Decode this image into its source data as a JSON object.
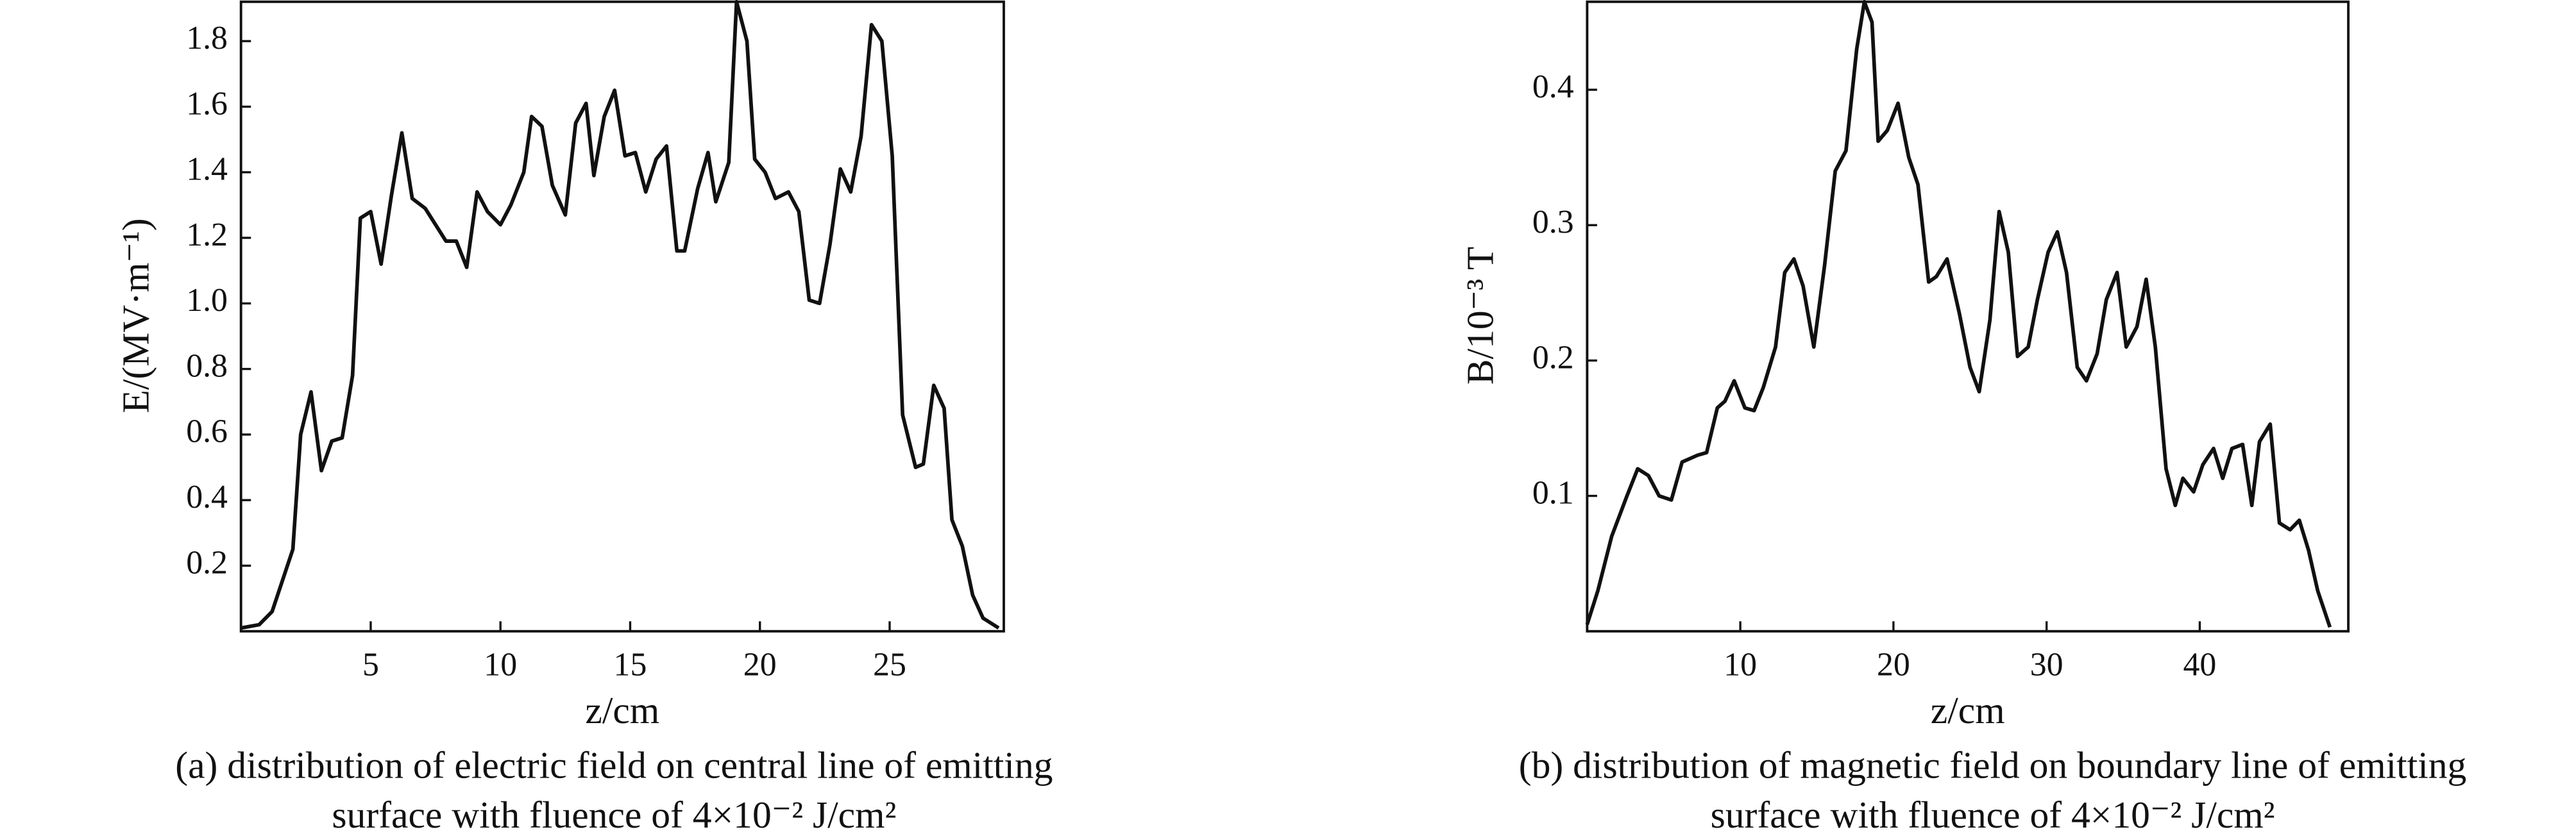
{
  "chart_data": [
    {
      "type": "line",
      "x_label": "z/cm",
      "y_label": "E/(MV·m⁻¹)",
      "caption": [
        "(a) distribution of electric field on central line of emitting",
        "surface with fluence of 4×10⁻² J/cm²"
      ],
      "xlim": [
        0,
        29.4
      ],
      "ylim": [
        0,
        1.92
      ],
      "xticks": [
        5,
        10,
        15,
        20,
        25
      ],
      "yticks": [
        0.2,
        0.4,
        0.6,
        0.8,
        {
          "value": 1,
          "label": "1.0"
        },
        1.2,
        1.4,
        1.6,
        1.8
      ],
      "color": "#111111",
      "x": [
        0,
        0.7,
        1.2,
        2,
        2.3,
        2.7,
        3.1,
        3.5,
        3.9,
        4.3,
        4.6,
        5,
        5.4,
        5.8,
        6.2,
        6.6,
        7.1,
        7.5,
        7.9,
        8.3,
        8.7,
        9.1,
        9.5,
        10,
        10.4,
        10.9,
        11.2,
        11.6,
        12,
        12.5,
        12.9,
        13.3,
        13.6,
        14,
        14.4,
        14.8,
        15.2,
        15.6,
        16,
        16.4,
        16.8,
        17.1,
        17.6,
        18,
        18.3,
        18.8,
        19.1,
        19.5,
        19.8,
        20.2,
        20.6,
        21.1,
        21.5,
        21.9,
        22.3,
        22.7,
        23.1,
        23.5,
        23.9,
        24.3,
        24.7,
        25.1,
        25.5,
        26,
        26.3,
        26.7,
        27.1,
        27.4,
        27.8,
        28.2,
        28.6,
        29.2
      ],
      "values": [
        0.01,
        0.02,
        0.06,
        0.25,
        0.6,
        0.73,
        0.49,
        0.58,
        0.59,
        0.78,
        1.26,
        1.28,
        1.12,
        1.33,
        1.52,
        1.32,
        1.29,
        1.24,
        1.19,
        1.19,
        1.11,
        1.34,
        1.28,
        1.24,
        1.3,
        1.4,
        1.57,
        1.54,
        1.36,
        1.27,
        1.55,
        1.61,
        1.39,
        1.57,
        1.65,
        1.45,
        1.46,
        1.34,
        1.44,
        1.48,
        1.16,
        1.16,
        1.35,
        1.46,
        1.31,
        1.43,
        1.92,
        1.8,
        1.44,
        1.4,
        1.32,
        1.34,
        1.28,
        1.01,
        1,
        1.18,
        1.41,
        1.34,
        1.51,
        1.85,
        1.8,
        1.45,
        0.66,
        0.5,
        0.51,
        0.75,
        0.68,
        0.34,
        0.26,
        0.11,
        0.04,
        0.01
      ]
    },
    {
      "type": "line",
      "x_label": "z/cm",
      "y_label": "B/10⁻³ T",
      "caption": [
        "(b) distribution of magnetic field on boundary line of emitting",
        "surface with fluence of 4×10⁻² J/cm²"
      ],
      "xlim": [
        0,
        49.7
      ],
      "ylim": [
        0,
        0.465
      ],
      "xticks": [
        10,
        20,
        30,
        40
      ],
      "yticks": [
        0.1,
        0.2,
        0.3,
        0.4
      ],
      "color": "#111111",
      "x": [
        0,
        0.7,
        1.6,
        2.6,
        3.3,
        4,
        4.7,
        5.5,
        6.2,
        7.2,
        7.8,
        8.5,
        9,
        9.6,
        10.3,
        10.9,
        11.5,
        12.3,
        12.9,
        13.5,
        14.1,
        14.8,
        15.5,
        16.2,
        16.9,
        17.6,
        18.1,
        18.6,
        19,
        19.6,
        20.3,
        21,
        21.6,
        22.3,
        22.8,
        23.5,
        24.3,
        25,
        25.6,
        26.3,
        26.9,
        27.5,
        28.1,
        28.8,
        29.4,
        30.1,
        30.7,
        31.3,
        32,
        32.6,
        33.3,
        33.9,
        34.6,
        35.2,
        35.9,
        36.5,
        37.1,
        37.8,
        38.4,
        38.9,
        39.6,
        40.2,
        40.9,
        41.5,
        42.1,
        42.8,
        43.4,
        43.9,
        44.6,
        45.2,
        45.9,
        46.5,
        47.1,
        47.7,
        48.5
      ],
      "values": [
        0.005,
        0.03,
        0.07,
        0.1,
        0.12,
        0.115,
        0.1,
        0.097,
        0.125,
        0.13,
        0.132,
        0.165,
        0.17,
        0.185,
        0.165,
        0.163,
        0.18,
        0.21,
        0.265,
        0.275,
        0.255,
        0.21,
        0.27,
        0.34,
        0.355,
        0.43,
        0.465,
        0.45,
        0.362,
        0.37,
        0.39,
        0.35,
        0.33,
        0.258,
        0.262,
        0.275,
        0.235,
        0.195,
        0.177,
        0.23,
        0.31,
        0.28,
        0.203,
        0.21,
        0.245,
        0.28,
        0.295,
        0.265,
        0.195,
        0.185,
        0.205,
        0.245,
        0.265,
        0.21,
        0.225,
        0.26,
        0.21,
        0.12,
        0.093,
        0.113,
        0.103,
        0.123,
        0.135,
        0.113,
        0.135,
        0.138,
        0.093,
        0.14,
        0.153,
        0.08,
        0.075,
        0.082,
        0.06,
        0.03,
        0.003
      ]
    }
  ]
}
